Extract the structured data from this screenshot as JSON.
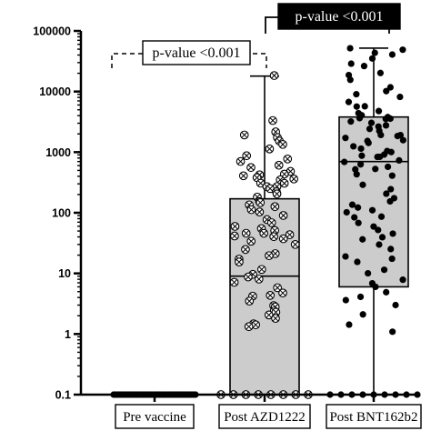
{
  "chart_data": {
    "type": "box-scatter",
    "title": "",
    "xlabel": "",
    "ylabel": "",
    "y_scale": "log",
    "ylim": [
      0.1,
      100000
    ],
    "y_ticks": [
      {
        "value": 100000,
        "label": "100000"
      },
      {
        "value": 10000,
        "label": "10000"
      },
      {
        "value": 1000,
        "label": "1000"
      },
      {
        "value": 100,
        "label": "100"
      },
      {
        "value": 10,
        "label": "10"
      },
      {
        "value": 1,
        "label": "1"
      },
      {
        "value": 0.1,
        "label": "0.1"
      }
    ],
    "categories": [
      "Pre vaccine",
      "Post AZD1222",
      "Post BNT162b2"
    ],
    "groups": [
      {
        "name": "Pre vaccine",
        "marker": "filled",
        "box": null,
        "points": [
          0.1,
          0.1,
          0.1,
          0.1,
          0.1,
          0.1,
          0.1,
          0.1,
          0.1,
          0.1,
          0.1,
          0.1,
          0.1,
          0.1,
          0.1,
          0.1,
          0.1,
          0.1,
          0.1,
          0.1,
          0.1,
          0.1,
          0.1,
          0.1,
          0.1,
          0.1,
          0.1,
          0.1,
          0.1,
          0.1,
          0.1,
          0.1,
          0.1,
          0.1,
          0.1,
          0.1,
          0.1,
          0.1,
          0.1,
          0.1
        ]
      },
      {
        "name": "Post AZD1222",
        "marker": "circle-x",
        "box": {
          "min": 0.1,
          "q1": 0.1,
          "median": 9,
          "q3": 170,
          "max": 18000
        },
        "points": [
          18000,
          3500,
          2200,
          2000,
          1800,
          1500,
          1300,
          1100,
          900,
          800,
          700,
          600,
          550,
          500,
          420,
          420,
          400,
          380,
          360,
          340,
          320,
          300,
          280,
          260,
          240,
          220,
          200,
          180,
          160,
          140,
          130,
          120,
          110,
          100,
          90,
          80,
          70,
          60,
          55,
          50,
          48,
          46,
          44,
          42,
          40,
          38,
          35,
          30,
          25,
          22,
          20,
          18,
          15,
          12,
          10,
          9,
          8,
          7,
          6,
          5,
          4.5,
          4,
          3.5,
          3,
          2.8,
          2.5,
          2.2,
          2,
          1.8,
          1.5,
          1.4,
          1.3,
          0.1,
          0.1,
          0.1,
          0.1,
          0.1,
          0.1,
          0.1,
          0.1
        ]
      },
      {
        "name": "Post BNT162b2",
        "marker": "filled",
        "box": {
          "min": 0.1,
          "q1": 6,
          "median": 700,
          "q3": 3800,
          "max": 52000
        },
        "points": [
          52000,
          50000,
          45000,
          40000,
          35000,
          30000,
          25000,
          20000,
          18000,
          15000,
          12000,
          10000,
          9000,
          8000,
          7000,
          6000,
          5500,
          5000,
          4500,
          4200,
          4000,
          3800,
          3600,
          3500,
          3400,
          3200,
          3000,
          2800,
          2600,
          2400,
          2200,
          2000,
          1900,
          1800,
          1700,
          1600,
          1500,
          1400,
          1300,
          1200,
          1100,
          1000,
          950,
          900,
          850,
          800,
          750,
          700,
          650,
          600,
          550,
          500,
          450,
          400,
          300,
          250,
          200,
          180,
          150,
          130,
          120,
          110,
          100,
          90,
          80,
          70,
          60,
          50,
          45,
          40,
          35,
          30,
          25,
          20,
          18,
          15,
          12,
          10,
          8,
          7,
          6,
          5,
          4,
          3.5,
          3,
          2,
          1.5,
          1.1,
          0.1,
          0.1,
          0.1,
          0.1,
          0.1,
          0.1,
          0.1,
          0.1,
          0.1
        ]
      }
    ],
    "significance": [
      {
        "label": "p-value <0.001",
        "from": "Pre vaccine",
        "to": "Post AZD1222",
        "style": "dashed",
        "box": "white"
      },
      {
        "label": "p-value <0.001",
        "from": "Post AZD1222",
        "to": "Post BNT162b2",
        "style": "solid",
        "box": "black"
      }
    ]
  }
}
